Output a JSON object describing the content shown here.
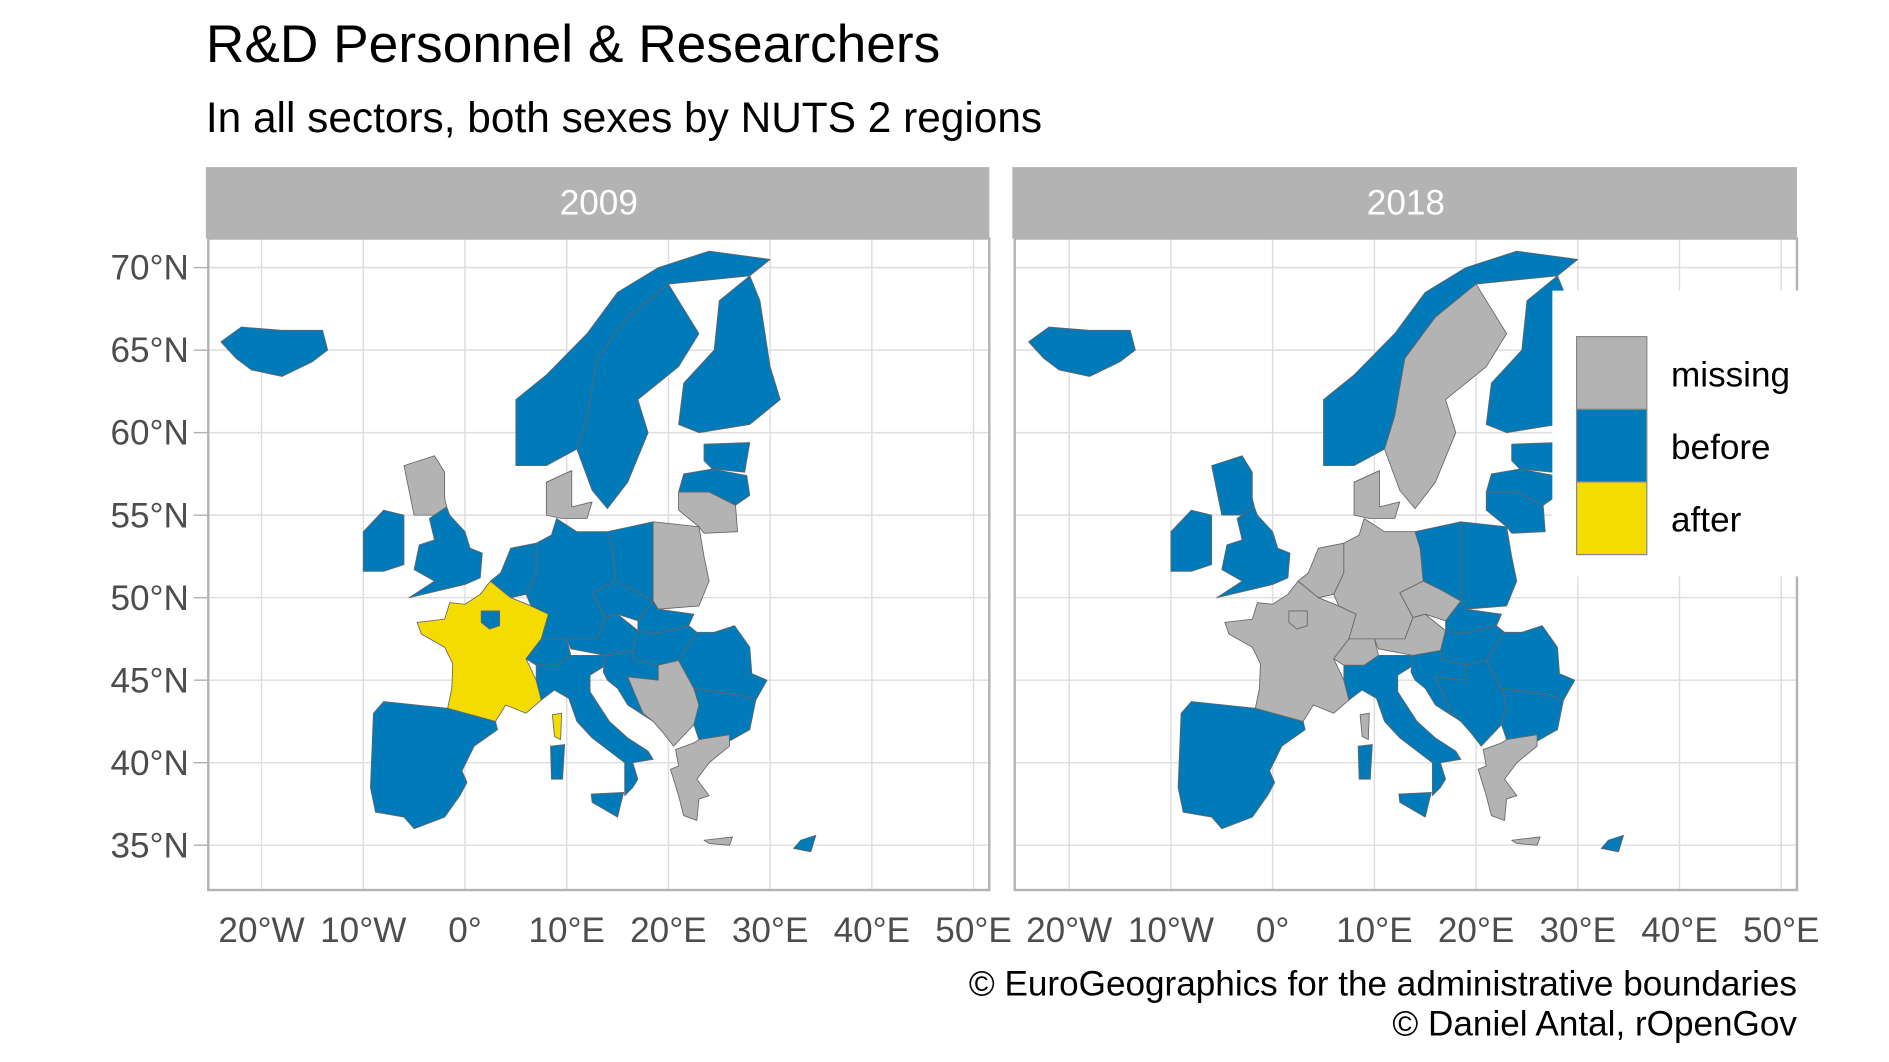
{
  "title": "R&D Personnel & Researchers",
  "subtitle": "In all sectors, both sexes by NUTS 2 regions",
  "caption": [
    "© EuroGeographics for the administrative boundaries",
    "© Daniel Antal, rOpenGov"
  ],
  "chart_data": {
    "type": "choropleth map",
    "facets": [
      "2009",
      "2018"
    ],
    "x_ticks": [
      "20°W",
      "10°W",
      "0°",
      "10°E",
      "20°E",
      "30°E",
      "40°E",
      "50°E"
    ],
    "x_tick_values": [
      -20,
      -10,
      0,
      10,
      20,
      30,
      40,
      50
    ],
    "y_ticks": [
      "35°N",
      "40°N",
      "45°N",
      "50°N",
      "55°N",
      "60°N",
      "65°N",
      "70°N"
    ],
    "y_tick_values": [
      35,
      40,
      45,
      50,
      55,
      60,
      65,
      70
    ],
    "xlim": [
      -25,
      52
    ],
    "ylim": [
      32.5,
      72
    ],
    "grid": true,
    "legend": {
      "placement": "right, inside 2018 panel",
      "entries": [
        {
          "label": "missing",
          "color": "#b3b3b3"
        },
        {
          "label": "before",
          "color": "#007ab8"
        },
        {
          "label": "after",
          "color": "#f5dc00"
        }
      ]
    },
    "regions": {
      "2009": {
        "Iceland": "before",
        "Norway": "before",
        "Sweden": "before",
        "Finland": "before",
        "Denmark": "missing",
        "Scotland": "missing",
        "England & Wales": "before",
        "Ireland": "before",
        "Iberia": "before",
        "France": "after",
        "Île-de-France": "before",
        "Corsica": "after",
        "Benelux": "before",
        "Germany": "before",
        "Switzerland": "before",
        "Austria": "before",
        "Czechia": "before",
        "Poland west": "before",
        "Poland east": "missing",
        "Lithuania": "missing",
        "Latvia": "before",
        "Estonia": "before",
        "Slovakia": "before",
        "Hungary": "before",
        "Slovenia & Croatia": "before",
        "Western Balkans": "missing",
        "Romania": "before",
        "Bulgaria": "before",
        "Greece": "missing",
        "Crete": "missing",
        "Italy": "before",
        "Sicily": "before",
        "Sardinia": "before",
        "Cyprus": "before"
      },
      "2018": {
        "Iceland": "before",
        "Norway": "before",
        "Sweden": "missing",
        "Finland": "before",
        "Denmark": "missing",
        "Scotland": "before",
        "England & Wales": "before",
        "Ireland": "before",
        "Iberia": "before",
        "France": "missing",
        "Île-de-France": "missing",
        "Corsica": "missing",
        "Benelux": "missing",
        "Germany": "missing",
        "Switzerland": "missing",
        "Austria": "missing",
        "Czechia": "missing",
        "Poland west": "before",
        "Poland east": "before",
        "Lithuania": "before",
        "Latvia": "before",
        "Estonia": "before",
        "Slovakia": "before",
        "Hungary": "before",
        "Slovenia & Croatia": "before",
        "Western Balkans": "before",
        "Romania": "before",
        "Bulgaria": "before",
        "Greece": "missing",
        "Crete": "missing",
        "Italy": "before",
        "Sicily": "before",
        "Sardinia": "before",
        "Cyprus": "before"
      }
    }
  }
}
